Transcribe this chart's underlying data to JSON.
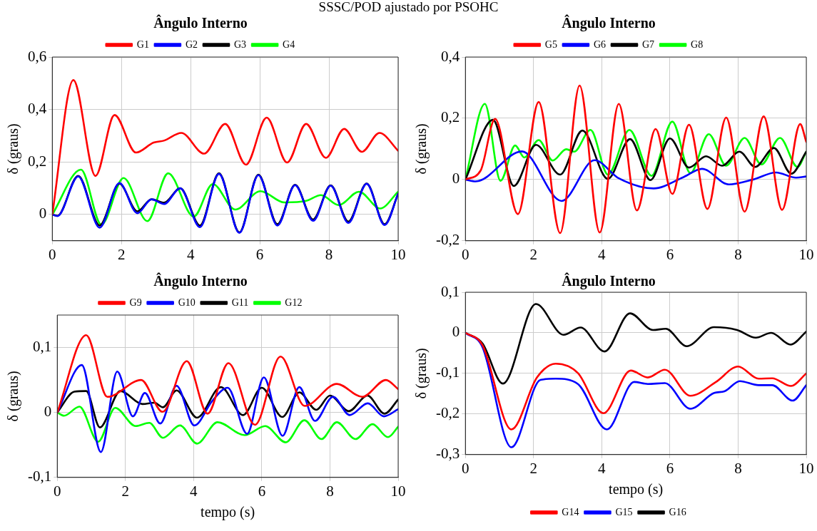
{
  "chart_data": [
    {
      "type": "line",
      "title": "Ângulo Interno",
      "ylabel": "δ (graus)",
      "annotations": [
        "SSSC/POD ajustado por PSOHC"
      ],
      "xlim": [
        0,
        10
      ],
      "ylim": [
        -0.1,
        0.6
      ],
      "xticks": [
        0,
        2,
        4,
        6,
        8,
        10
      ],
      "yticks": [
        {
          "value": 0,
          "label": "0"
        },
        {
          "value": 0.2,
          "label": "0,2"
        },
        {
          "value": 0.4,
          "label": "0,4"
        },
        {
          "value": 0.6,
          "label": "0,6"
        }
      ],
      "grid": true,
      "legend": "top",
      "marker": "none",
      "series": [
        {
          "name": "G1",
          "color": "#ff0000",
          "x": [
            0,
            0.61,
            1.25,
            1.8,
            2.42,
            2.93,
            3.24,
            3.73,
            4.39,
            5.0,
            5.6,
            6.2,
            6.79,
            7.34,
            7.91,
            8.44,
            8.95,
            9.46,
            10
          ],
          "values": [
            0,
            0.512,
            0.147,
            0.379,
            0.236,
            0.274,
            0.282,
            0.311,
            0.232,
            0.345,
            0.19,
            0.369,
            0.198,
            0.345,
            0.216,
            0.326,
            0.239,
            0.311,
            0.243
          ]
        },
        {
          "name": "G2",
          "color": "#0000ff",
          "x": [
            0,
            0.15,
            0.75,
            1.37,
            1.94,
            2.46,
            2.87,
            3.23,
            3.7,
            4.27,
            4.82,
            5.41,
            5.96,
            6.51,
            7.02,
            7.54,
            8.05,
            8.56,
            9.09,
            9.61,
            10
          ],
          "values": [
            0,
            -0.006,
            0.145,
            -0.05,
            0.12,
            0.005,
            0.058,
            0.04,
            0.1,
            -0.048,
            0.155,
            -0.07,
            0.15,
            -0.042,
            0.112,
            -0.024,
            0.11,
            -0.032,
            0.117,
            -0.04,
            0.079
          ]
        },
        {
          "name": "G3",
          "color": "#000000",
          "x": [
            0,
            0.15,
            0.75,
            1.37,
            1.94,
            2.46,
            2.87,
            3.23,
            3.7,
            4.27,
            4.82,
            5.41,
            5.96,
            6.51,
            7.02,
            7.54,
            8.05,
            8.56,
            9.09,
            9.61,
            10
          ],
          "values": [
            0,
            -0.005,
            0.147,
            -0.042,
            0.118,
            0.012,
            0.058,
            0.045,
            0.1,
            -0.042,
            0.157,
            -0.068,
            0.152,
            -0.037,
            0.113,
            -0.019,
            0.111,
            -0.027,
            0.118,
            -0.037,
            0.079
          ]
        },
        {
          "name": "G4",
          "color": "#00ff00",
          "x": [
            0,
            0.83,
            1.42,
            2.06,
            2.75,
            3.35,
            4.09,
            4.64,
            5.29,
            6.02,
            6.71,
            7.34,
            7.77,
            8.28,
            8.87,
            9.48,
            10
          ],
          "values": [
            0,
            0.171,
            -0.039,
            0.139,
            -0.025,
            0.157,
            -0.008,
            0.116,
            0.019,
            0.089,
            0.046,
            0.052,
            0.074,
            0.036,
            0.087,
            0.023,
            0.087
          ]
        }
      ]
    },
    {
      "type": "line",
      "title": "Ângulo Interno",
      "ylabel": "δ (graus)",
      "xlim": [
        0,
        10
      ],
      "ylim": [
        -0.2,
        0.4
      ],
      "xticks": [
        0,
        2,
        4,
        6,
        8,
        10
      ],
      "yticks": [
        {
          "value": -0.2,
          "label": "-0,2"
        },
        {
          "value": 0,
          "label": "0"
        },
        {
          "value": 0.2,
          "label": "0,2"
        },
        {
          "value": 0.4,
          "label": "0,4"
        }
      ],
      "grid": true,
      "legend": "top",
      "marker": "none",
      "series": [
        {
          "name": "G5",
          "color": "#ff0000",
          "x": [
            0,
            0.45,
            0.87,
            1.54,
            2.15,
            2.78,
            3.35,
            3.94,
            4.5,
            5.03,
            5.58,
            6.07,
            6.56,
            7.1,
            7.65,
            8.19,
            8.75,
            9.29,
            9.82,
            10
          ],
          "values": [
            0,
            0.03,
            0.198,
            -0.113,
            0.253,
            -0.175,
            0.307,
            -0.173,
            0.247,
            -0.101,
            0.165,
            -0.047,
            0.179,
            -0.096,
            0.202,
            -0.105,
            0.206,
            -0.099,
            0.181,
            0.123
          ]
        },
        {
          "name": "G6",
          "color": "#0000ff",
          "x": [
            0,
            0.3,
            1.66,
            2.82,
            3.79,
            4.5,
            5.52,
            6.4,
            6.94,
            7.73,
            8.44,
            9.11,
            9.7,
            10
          ],
          "values": [
            0,
            -0.006,
            0.092,
            -0.07,
            0.063,
            0.004,
            -0.029,
            0.008,
            0.035,
            -0.016,
            0,
            0.023,
            0.006,
            0.01
          ]
        },
        {
          "name": "G7",
          "color": "#000000",
          "x": [
            0,
            0.81,
            1.42,
            2.07,
            2.78,
            3.43,
            4.18,
            4.83,
            5.43,
            6.0,
            6.56,
            7.06,
            7.53,
            8.04,
            8.5,
            9.05,
            9.56,
            10
          ],
          "values": [
            0,
            0.195,
            -0.021,
            0.113,
            0.016,
            0.16,
            0.002,
            0.132,
            -0.002,
            0.134,
            0.039,
            0.076,
            0.045,
            0.091,
            0.041,
            0.103,
            0.019,
            0.091
          ]
        },
        {
          "name": "G8",
          "color": "#00ff00",
          "x": [
            0,
            0.57,
            1.03,
            1.46,
            1.73,
            2.15,
            2.56,
            2.96,
            3.19,
            3.67,
            4.18,
            4.81,
            5.46,
            6.07,
            6.6,
            7.14,
            7.65,
            8.19,
            8.68,
            9.23,
            9.74,
            10
          ],
          "values": [
            0,
            0.247,
            -0.004,
            0.111,
            0.072,
            0.129,
            0.062,
            0.099,
            0.091,
            0.162,
            0.016,
            0.162,
            0.012,
            0.189,
            0.021,
            0.148,
            0.045,
            0.136,
            0.049,
            0.136,
            0.041,
            0.091
          ]
        }
      ]
    },
    {
      "type": "line",
      "title": "Ângulo Interno",
      "xlabel": "tempo (s)",
      "ylabel": "δ (graus)",
      "xlim": [
        0,
        10
      ],
      "ylim": [
        -0.1,
        0.15
      ],
      "xticks": [
        0,
        2,
        4,
        6,
        8,
        10
      ],
      "yticks": [
        {
          "value": -0.1,
          "label": "-0,1"
        },
        {
          "value": 0,
          "label": "0"
        },
        {
          "value": 0.1,
          "label": "0,1"
        }
      ],
      "grid": true,
      "legend": "top",
      "marker": "none",
      "series": [
        {
          "name": "G9",
          "color": "#ff0000",
          "x": [
            0,
            0.85,
            1.47,
            2.46,
            3.09,
            3.8,
            4.41,
            5.02,
            5.8,
            6.55,
            7.26,
            8.2,
            8.95,
            9.64,
            10
          ],
          "values": [
            0,
            0.119,
            0.024,
            0.05,
            0.001,
            0.079,
            -0.002,
            0.076,
            -0.019,
            0.086,
            0.01,
            0.044,
            0.024,
            0.05,
            0.036
          ]
        },
        {
          "name": "G10",
          "color": "#0000ff",
          "x": [
            0,
            0.72,
            1.28,
            1.76,
            2.22,
            2.57,
            3.02,
            3.5,
            4.02,
            4.55,
            5.0,
            5.57,
            6.06,
            6.61,
            7.1,
            7.56,
            8.09,
            8.58,
            9.11,
            9.58,
            10
          ],
          "values": [
            0,
            0.073,
            -0.061,
            0.063,
            -0.006,
            0.03,
            -0.017,
            0.041,
            -0.02,
            0.018,
            0.038,
            -0.033,
            0.054,
            -0.036,
            0.039,
            -0.013,
            0.024,
            -0.004,
            0.014,
            -0.006,
            0.005
          ]
        },
        {
          "name": "G11",
          "color": "#000000",
          "x": [
            0,
            0.5,
            0.85,
            1.25,
            1.85,
            2.5,
            2.85,
            3.1,
            3.5,
            4.1,
            4.8,
            5.45,
            6.0,
            6.6,
            7.1,
            7.6,
            8.0,
            8.55,
            9.1,
            9.6,
            10
          ],
          "values": [
            0,
            0.032,
            0.033,
            -0.023,
            0.033,
            0.013,
            0.015,
            0.008,
            0.034,
            -0.008,
            0.039,
            -0.004,
            0.038,
            -0.007,
            0.031,
            0.004,
            0.026,
            0.002,
            0.026,
            -0.002,
            0.02
          ]
        },
        {
          "name": "G12",
          "color": "#00ff00",
          "x": [
            0,
            0.2,
            0.65,
            1.2,
            1.7,
            2.3,
            2.7,
            3.1,
            3.6,
            4.1,
            4.7,
            5.5,
            6.1,
            6.7,
            7.25,
            7.75,
            8.2,
            8.75,
            9.25,
            9.7,
            10
          ],
          "values": [
            0,
            -0.005,
            0.009,
            -0.045,
            0.007,
            -0.021,
            -0.016,
            -0.039,
            -0.02,
            -0.048,
            -0.015,
            -0.035,
            -0.021,
            -0.046,
            -0.012,
            -0.041,
            -0.015,
            -0.041,
            -0.018,
            -0.038,
            -0.022
          ]
        }
      ]
    },
    {
      "type": "line",
      "title": "Ângulo Interno",
      "xlabel": "tempo (s)",
      "ylabel": "δ (graus)",
      "xlim": [
        0,
        10
      ],
      "ylim": [
        -0.3,
        0.1
      ],
      "xticks": [
        0,
        2,
        4,
        6,
        8,
        10
      ],
      "yticks": [
        {
          "value": -0.3,
          "label": "-0,3"
        },
        {
          "value": -0.2,
          "label": "-0,2"
        },
        {
          "value": -0.1,
          "label": "-0,1"
        },
        {
          "value": 0,
          "label": "0"
        },
        {
          "value": 0.1,
          "label": "0,1"
        }
      ],
      "grid": true,
      "legend": "bottom",
      "marker": "none",
      "series": [
        {
          "name": "G14",
          "color": "#ff0000",
          "x": [
            0,
            0.5,
            1.35,
            2.1,
            2.65,
            3.3,
            4.05,
            4.85,
            5.35,
            5.85,
            6.6,
            7.35,
            8.0,
            8.6,
            9.0,
            9.55,
            10
          ],
          "values": [
            0,
            -0.03,
            -0.238,
            -0.11,
            -0.076,
            -0.099,
            -0.198,
            -0.093,
            -0.11,
            -0.091,
            -0.155,
            -0.121,
            -0.083,
            -0.113,
            -0.112,
            -0.131,
            -0.1
          ]
        },
        {
          "name": "G15",
          "color": "#0000ff",
          "x": [
            0,
            0.5,
            1.35,
            2.2,
            2.65,
            3.3,
            4.15,
            4.95,
            5.35,
            5.85,
            6.6,
            7.3,
            7.6,
            8.05,
            8.6,
            9.0,
            9.6,
            10
          ],
          "values": [
            0,
            -0.035,
            -0.282,
            -0.116,
            -0.113,
            -0.126,
            -0.238,
            -0.121,
            -0.126,
            -0.124,
            -0.187,
            -0.148,
            -0.144,
            -0.119,
            -0.129,
            -0.129,
            -0.167,
            -0.129
          ]
        },
        {
          "name": "G16",
          "color": "#000000",
          "x": [
            0,
            0.5,
            1.1,
            2.07,
            2.88,
            3.38,
            4.08,
            4.83,
            5.5,
            5.88,
            6.49,
            7.29,
            7.97,
            8.52,
            8.97,
            9.54,
            10
          ],
          "values": [
            0,
            -0.026,
            -0.125,
            0.071,
            -0.005,
            0.013,
            -0.046,
            0.048,
            0.007,
            0.01,
            -0.033,
            0.014,
            0.007,
            -0.012,
            0,
            -0.029,
            0.003
          ]
        }
      ]
    }
  ]
}
